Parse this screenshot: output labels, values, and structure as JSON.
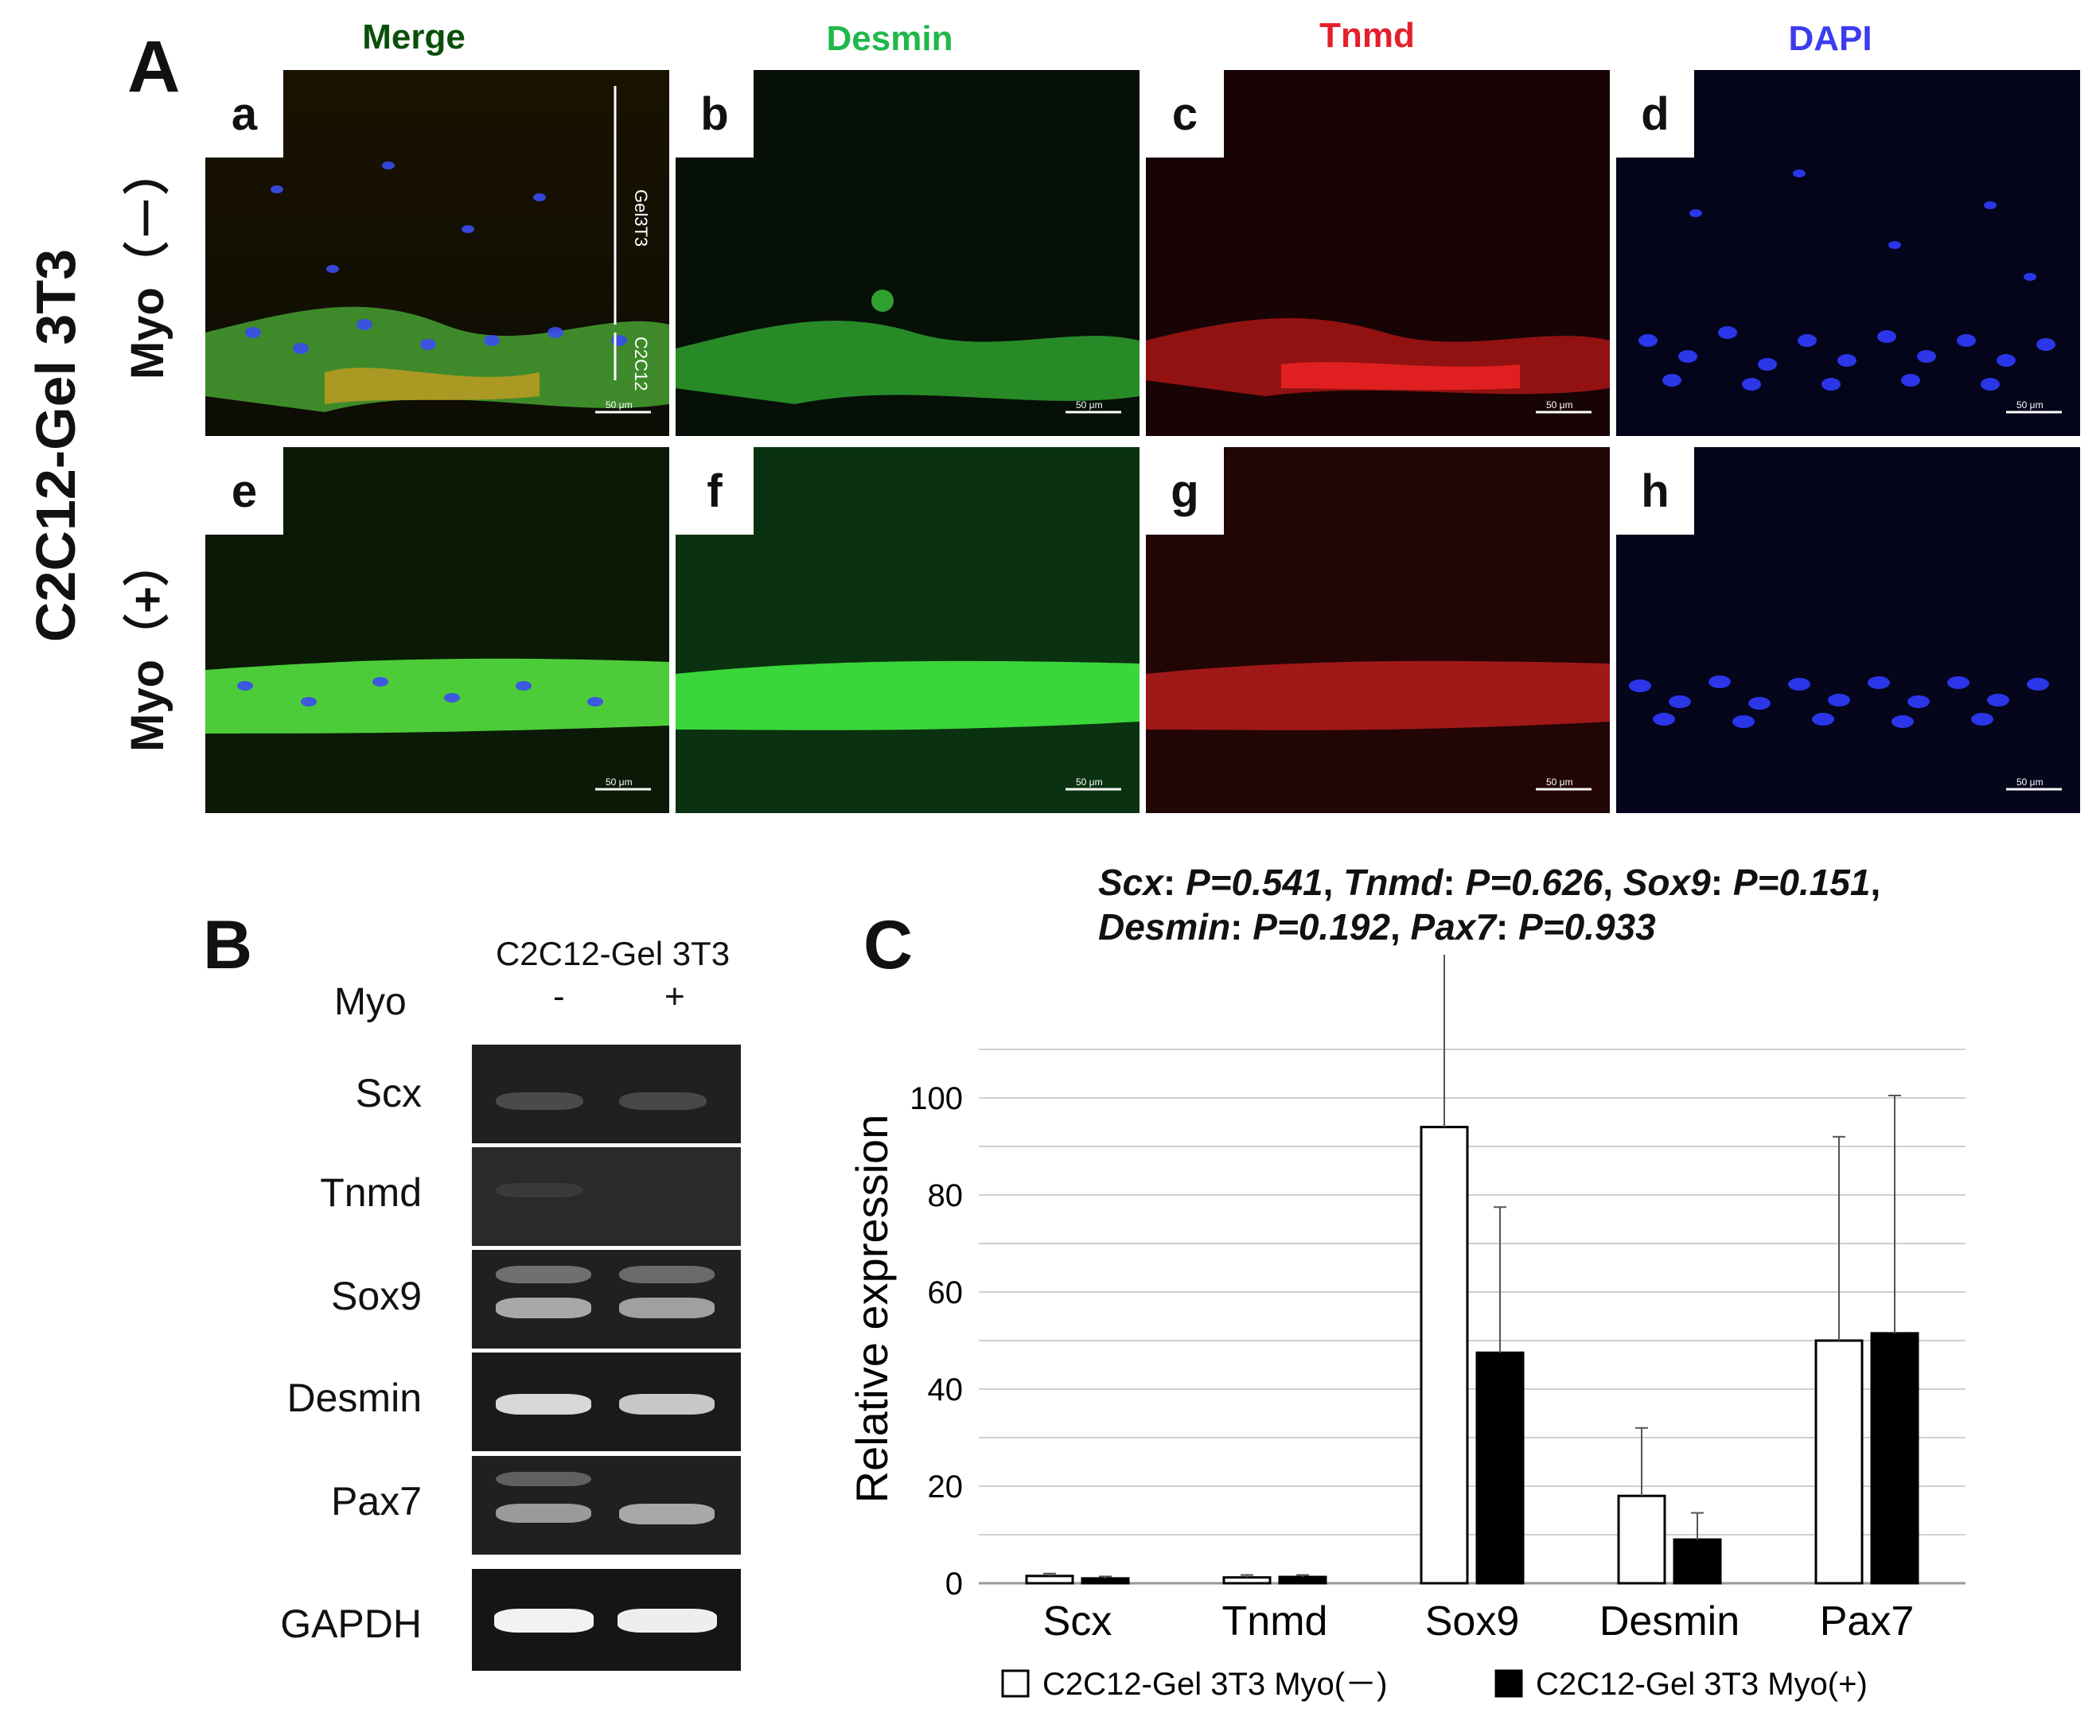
{
  "panelA": {
    "letter": "A",
    "column_headers": [
      "Merge",
      "Desmin",
      "Tnmd",
      "DAPI"
    ],
    "column_colors": [
      "#0a4f0a",
      "#1fb84a",
      "#e3202b",
      "#3b3bf0"
    ],
    "row_group_label": "C2C12-Gel 3T3",
    "row_labels": [
      "Myo（－）",
      "Myo（+）"
    ],
    "sublabels": [
      "a",
      "b",
      "c",
      "d",
      "e",
      "f",
      "g",
      "h"
    ],
    "scale_bar_text": "50 μm",
    "annot_gel3t3": "Gel3T3",
    "annot_c2c12": "C2C12"
  },
  "panelB": {
    "letter": "B",
    "header": "C2C12-Gel 3T3",
    "myo_label": "Myo",
    "lane_labels": [
      "-",
      "+"
    ],
    "genes": [
      "Scx",
      "Tnmd",
      "Sox9",
      "Desmin",
      "Pax7",
      "GAPDH"
    ]
  },
  "panelC": {
    "letter": "C",
    "stats_line1": [
      {
        "gene": "Scx",
        "p": "P=0.541"
      },
      {
        "gene": "Tnmd",
        "p": "P=0.626"
      },
      {
        "gene": "Sox9",
        "p": "P=0.151"
      }
    ],
    "stats_line2": [
      {
        "gene": "Desmin",
        "p": "P=0.192"
      },
      {
        "gene": "Pax7",
        "p": "P=0.933"
      }
    ]
  },
  "chart_data": {
    "type": "bar",
    "categories": [
      "Scx",
      "Tnmd",
      "Sox9",
      "Desmin",
      "Pax7"
    ],
    "series": [
      {
        "name": "C2C12-Gel 3T3 Myo(－)",
        "color": "#ffffff",
        "values": [
          1.5,
          1.2,
          94,
          18,
          50
        ],
        "errors": [
          0.5,
          0.5,
          48,
          14,
          42
        ]
      },
      {
        "name": "C2C12-Gel 3T3 Myo(+)",
        "color": "#000000",
        "values": [
          1.0,
          1.3,
          47.5,
          9,
          51.5
        ],
        "errors": [
          0.4,
          0.4,
          30,
          5.5,
          49
        ]
      }
    ],
    "ylabel": "Relative expression",
    "ylim": [
      0,
      100
    ],
    "yticks": [
      0,
      20,
      40,
      60,
      80,
      100
    ],
    "grid": true,
    "legend": "bottom"
  }
}
